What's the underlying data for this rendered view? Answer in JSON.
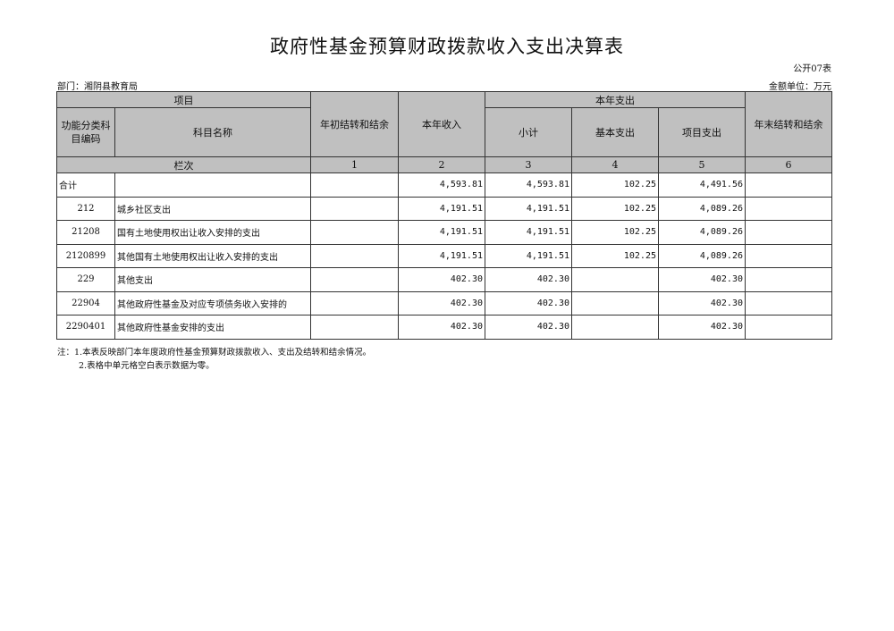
{
  "title": "政府性基金预算财政拨款收入支出决算表",
  "form_code": "公开07表",
  "department": "部门：湘阴县教育局",
  "unit": "金额单位：万元",
  "headers": {
    "item": "项目",
    "func_code": "功能分类科目编码",
    "subject_name": "科目名称",
    "opening_balance": "年初结转和结余",
    "income": "本年收入",
    "expenditure": "本年支出",
    "subtotal": "小计",
    "basic": "基本支出",
    "project": "项目支出",
    "closing_balance": "年末结转和结余",
    "column_no": "栏次",
    "col_numbers": [
      "1",
      "2",
      "3",
      "4",
      "5",
      "6"
    ]
  },
  "rows": [
    {
      "code": "合计",
      "name": "",
      "c1": "",
      "c2": "4,593.81",
      "c3": "4,593.81",
      "c4": "102.25",
      "c5": "4,491.56",
      "c6": ""
    },
    {
      "code": "212",
      "name": "城乡社区支出",
      "c1": "",
      "c2": "4,191.51",
      "c3": "4,191.51",
      "c4": "102.25",
      "c5": "4,089.26",
      "c6": ""
    },
    {
      "code": "21208",
      "name": "国有土地使用权出让收入安排的支出",
      "c1": "",
      "c2": "4,191.51",
      "c3": "4,191.51",
      "c4": "102.25",
      "c5": "4,089.26",
      "c6": ""
    },
    {
      "code": "2120899",
      "name": "其他国有土地使用权出让收入安排的支出",
      "c1": "",
      "c2": "4,191.51",
      "c3": "4,191.51",
      "c4": "102.25",
      "c5": "4,089.26",
      "c6": ""
    },
    {
      "code": "229",
      "name": "其他支出",
      "c1": "",
      "c2": "402.30",
      "c3": "402.30",
      "c4": "",
      "c5": "402.30",
      "c6": ""
    },
    {
      "code": "22904",
      "name": "其他政府性基金及对应专项债务收入安排的",
      "c1": "",
      "c2": "402.30",
      "c3": "402.30",
      "c4": "",
      "c5": "402.30",
      "c6": ""
    },
    {
      "code": "2290401",
      "name": "其他政府性基金安排的支出",
      "c1": "",
      "c2": "402.30",
      "c3": "402.30",
      "c4": "",
      "c5": "402.30",
      "c6": ""
    }
  ],
  "notes": [
    "注：1.本表反映部门本年度政府性基金预算财政拨款收入、支出及结转和结余情况。",
    "2.表格中单元格空白表示数据为零。"
  ]
}
